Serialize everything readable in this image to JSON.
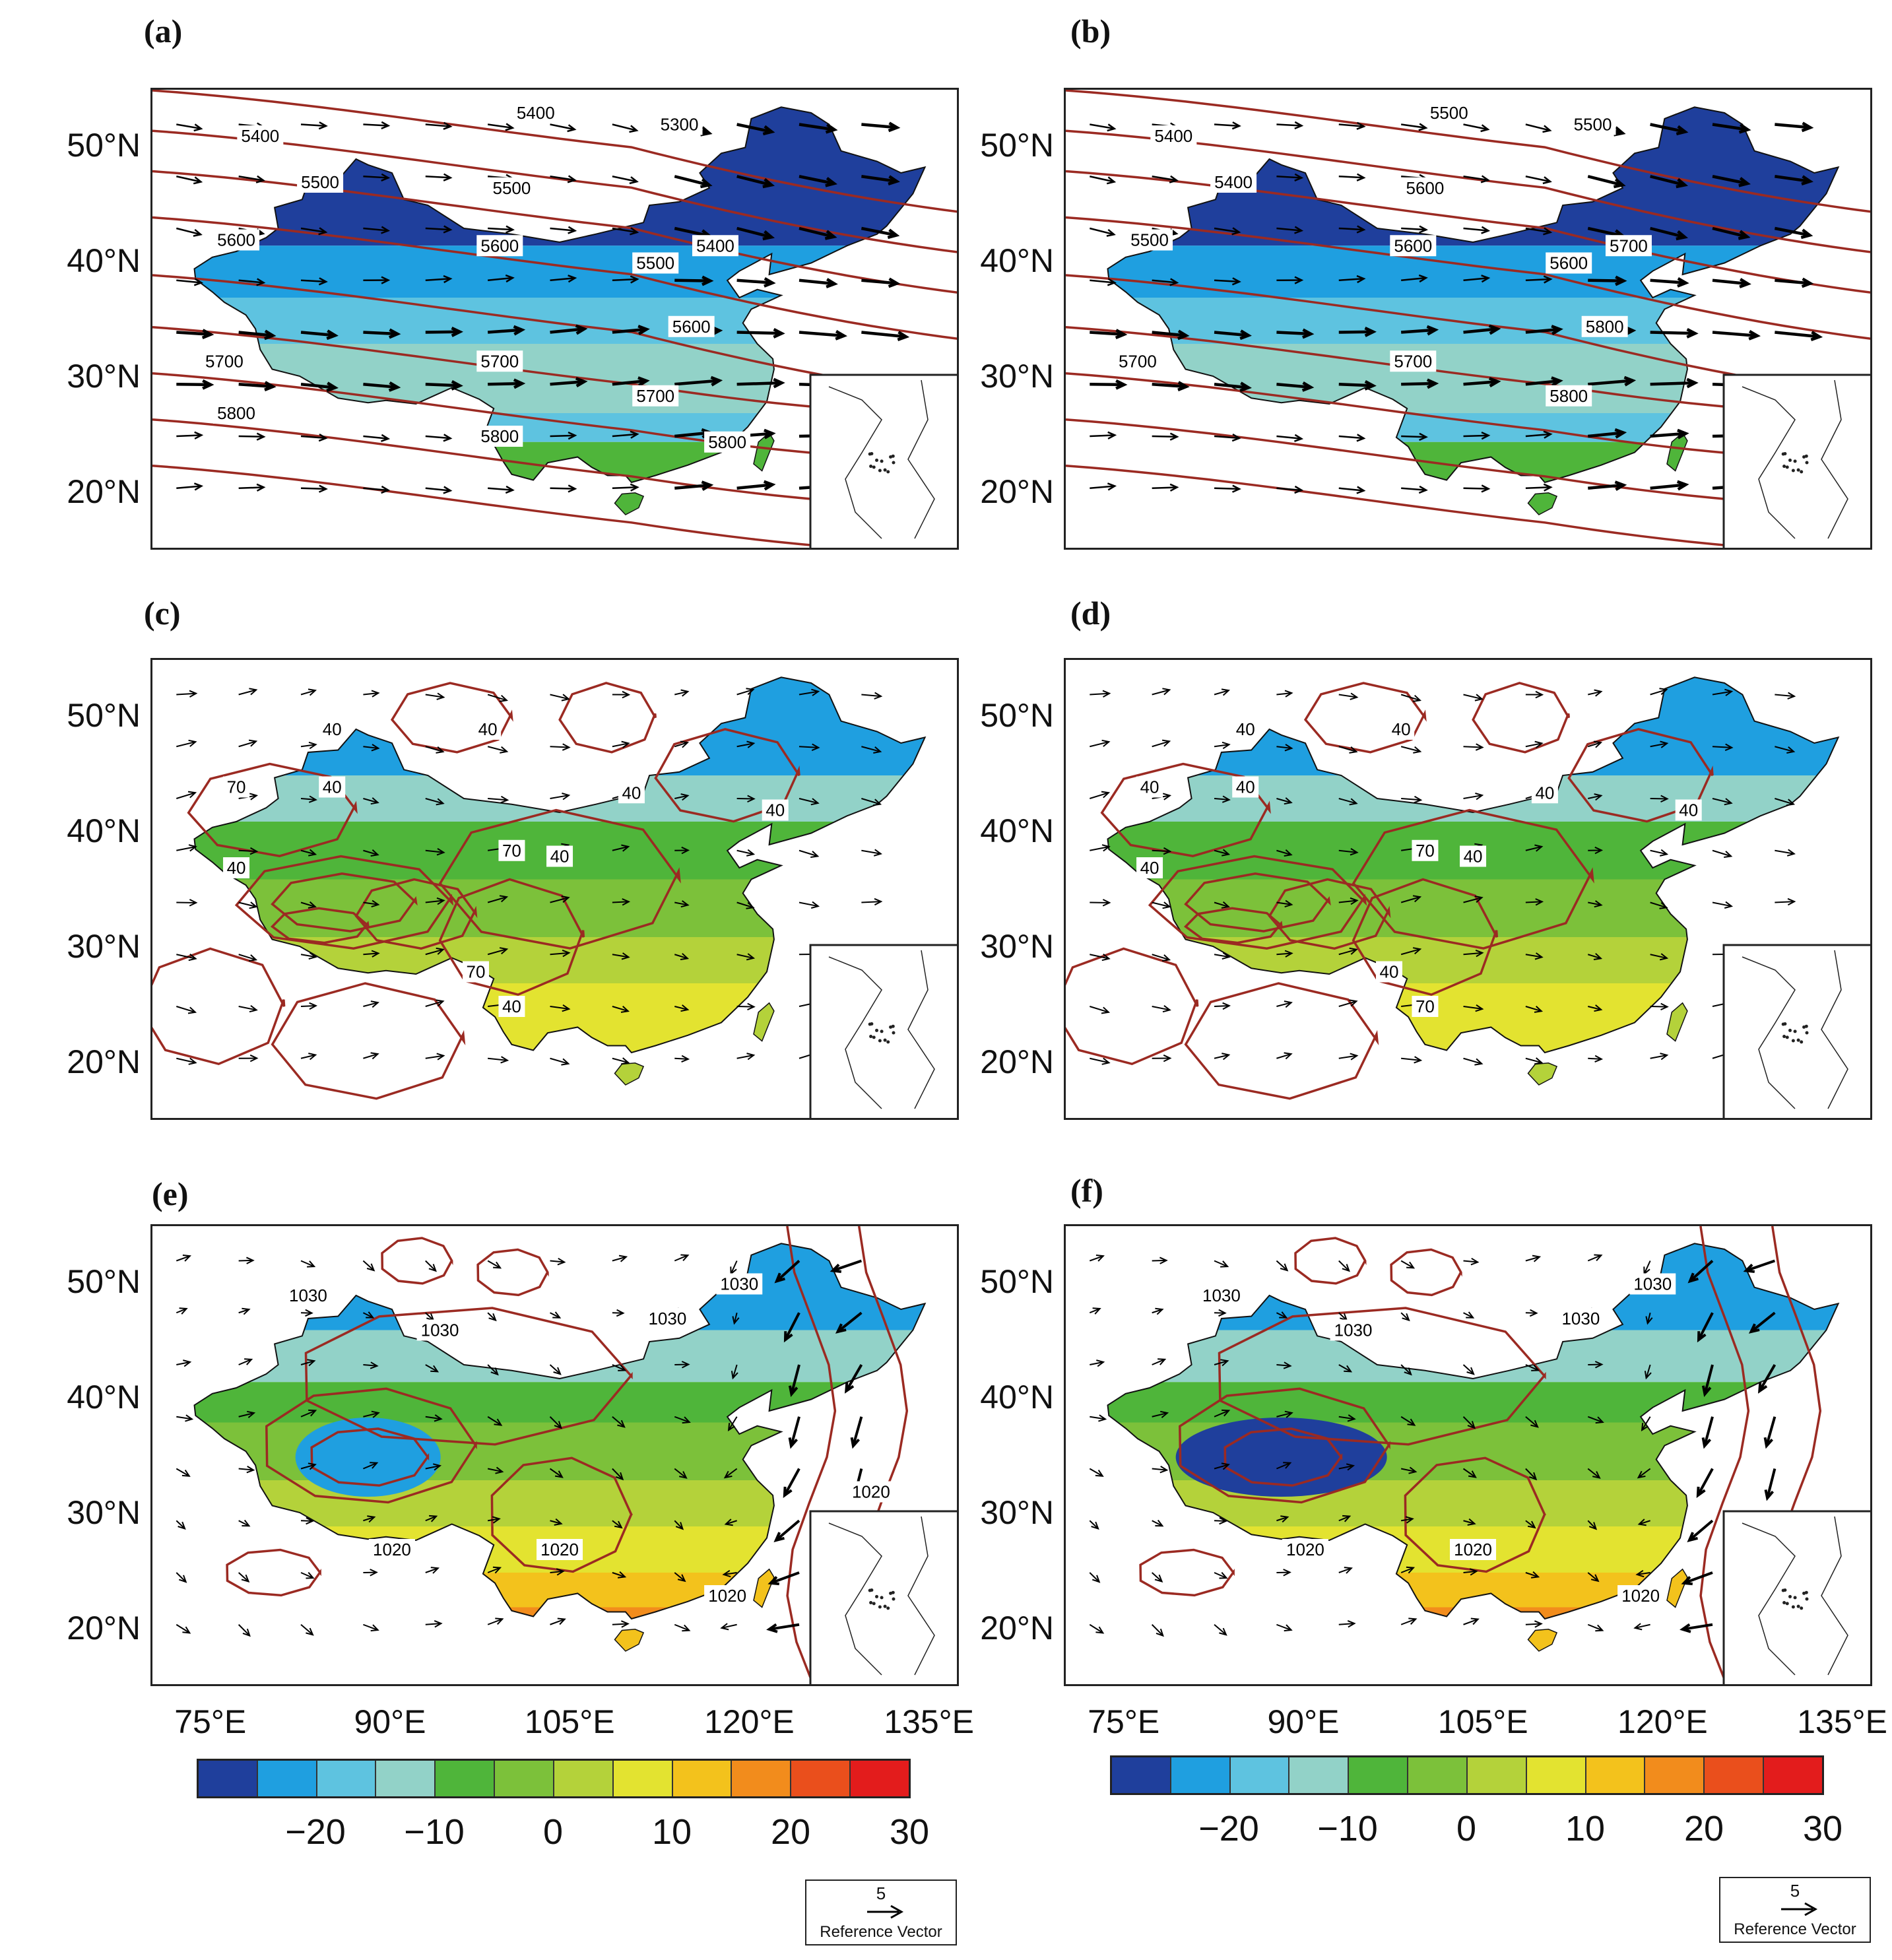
{
  "panels": [
    {
      "id": "a",
      "label": "(a)",
      "field": "z500",
      "fill": "cold",
      "contours": [
        "5400",
        "5400",
        "5300",
        "5500",
        "5500",
        "5600",
        "5600",
        "5500",
        "5400",
        "5700",
        "5700",
        "5600",
        "5700",
        "5800",
        "5800",
        "5800"
      ]
    },
    {
      "id": "b",
      "label": "(b)",
      "field": "z500",
      "fill": "cold",
      "contours": [
        "5400",
        "5500",
        "5500",
        "5400",
        "5600",
        "5500",
        "5600",
        "5600",
        "5700",
        "5700",
        "5700",
        "5800",
        "5800"
      ]
    },
    {
      "id": "c",
      "label": "(c)",
      "field": "mid",
      "fill": "mid",
      "contours": [
        "40",
        "40",
        "70",
        "40",
        "40",
        "40",
        "70",
        "40",
        "40",
        "70",
        "40"
      ]
    },
    {
      "id": "d",
      "label": "(d)",
      "field": "mid",
      "fill": "mid",
      "contours": [
        "40",
        "40",
        "40",
        "40",
        "40",
        "40",
        "70",
        "40",
        "70",
        "40",
        "40"
      ]
    },
    {
      "id": "e",
      "label": "(e)",
      "field": "slp",
      "fill": "warm",
      "contours": [
        "1030",
        "1030",
        "1030",
        "1030",
        "1020",
        "1020",
        "1020",
        "1020"
      ]
    },
    {
      "id": "f",
      "label": "(f)",
      "field": "slp",
      "fill": "warm",
      "contours": [
        "1030",
        "1030",
        "1030",
        "1030",
        "1020",
        "1020",
        "1020"
      ]
    }
  ],
  "lat_ticks": [
    "50°N",
    "40°N",
    "30°N",
    "20°N"
  ],
  "lon_ticks": [
    "75°E",
    "90°E",
    "105°E",
    "120°E",
    "135°E"
  ],
  "colorbar": {
    "colors": [
      "#1f3f9c",
      "#1f9fe0",
      "#5ec3e0",
      "#92d2c8",
      "#4fb53a",
      "#7cc13a",
      "#b4d23a",
      "#e3e330",
      "#f3c21c",
      "#f28c1c",
      "#ea4f1c",
      "#e31c1c"
    ],
    "labels": [
      "−20",
      "−10",
      "0",
      "10",
      "20",
      "30"
    ]
  },
  "reference_vector": {
    "value": "5",
    "label": "Reference Vector"
  }
}
